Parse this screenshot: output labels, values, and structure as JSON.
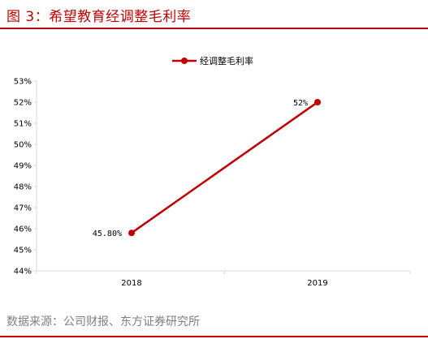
{
  "figure": {
    "title": "图 3：希望教育经调整毛利率",
    "source": "数据来源：公司财报、东方证券研究所"
  },
  "colors": {
    "accent": "#c00000",
    "axis": "#d9d9d9",
    "source_text": "#7f7f7f"
  },
  "chart_data": {
    "type": "line",
    "title": "",
    "xlabel": "",
    "ylabel": "",
    "categories": [
      "2018",
      "2019"
    ],
    "series": [
      {
        "name": "经调整毛利率",
        "values": [
          45.8,
          52
        ],
        "data_labels": [
          "45.80%",
          "52%"
        ],
        "color": "#c00000",
        "marker": "circle"
      }
    ],
    "ylim": [
      44,
      53
    ],
    "yticks": [
      "44%",
      "45%",
      "46%",
      "47%",
      "48%",
      "49%",
      "50%",
      "51%",
      "52%",
      "53%"
    ],
    "grid": false,
    "legend": "top-center"
  }
}
